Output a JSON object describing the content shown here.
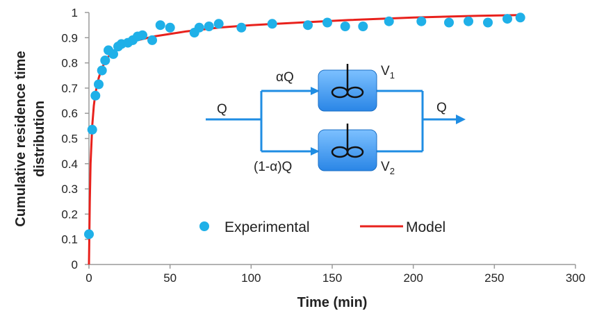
{
  "chart_data": {
    "type": "scatter",
    "xlabel": "Time (min)",
    "ylabel_line1": "Cumulative residence time",
    "ylabel_line2": "distribution",
    "xlim": [
      0,
      300
    ],
    "ylim": [
      0,
      1
    ],
    "x_ticks": [
      0,
      50,
      100,
      150,
      200,
      250,
      300
    ],
    "y_ticks": [
      0,
      0.1,
      0.2,
      0.3,
      0.4,
      0.5,
      0.6,
      0.7,
      0.8,
      0.9,
      1
    ],
    "y_tick_labels": [
      "0",
      "0.1",
      "0.2",
      "0.3",
      "0.4",
      "0.5",
      "0.6",
      "0.7",
      "0.8",
      "0.9",
      "1"
    ],
    "grid": false,
    "legend_position": "bottom-right",
    "series": [
      {
        "name": "Experimental",
        "kind": "scatter",
        "color": "#1fb0e8",
        "points": [
          [
            0,
            0.12
          ],
          [
            2,
            0.535
          ],
          [
            4,
            0.67
          ],
          [
            6,
            0.715
          ],
          [
            8,
            0.77
          ],
          [
            10,
            0.81
          ],
          [
            12,
            0.85
          ],
          [
            15,
            0.835
          ],
          [
            18,
            0.865
          ],
          [
            20,
            0.875
          ],
          [
            24,
            0.88
          ],
          [
            27,
            0.89
          ],
          [
            30,
            0.905
          ],
          [
            33,
            0.91
          ],
          [
            39,
            0.89
          ],
          [
            44,
            0.95
          ],
          [
            50,
            0.94
          ],
          [
            65,
            0.92
          ],
          [
            68,
            0.94
          ],
          [
            74,
            0.945
          ],
          [
            80,
            0.955
          ],
          [
            94,
            0.94
          ],
          [
            113,
            0.955
          ],
          [
            135,
            0.95
          ],
          [
            147,
            0.96
          ],
          [
            158,
            0.945
          ],
          [
            169,
            0.945
          ],
          [
            185,
            0.965
          ],
          [
            205,
            0.965
          ],
          [
            222,
            0.96
          ],
          [
            234,
            0.965
          ],
          [
            246,
            0.96
          ],
          [
            258,
            0.975
          ],
          [
            266,
            0.98
          ]
        ]
      },
      {
        "name": "Model",
        "kind": "line",
        "color": "#e8211c",
        "points": [
          [
            0,
            0
          ],
          [
            0.5,
            0.25
          ],
          [
            1,
            0.4
          ],
          [
            2,
            0.55
          ],
          [
            3,
            0.63
          ],
          [
            4,
            0.68
          ],
          [
            6,
            0.74
          ],
          [
            8,
            0.78
          ],
          [
            10,
            0.805
          ],
          [
            12,
            0.825
          ],
          [
            15,
            0.845
          ],
          [
            20,
            0.865
          ],
          [
            25,
            0.88
          ],
          [
            30,
            0.89
          ],
          [
            40,
            0.905
          ],
          [
            50,
            0.915
          ],
          [
            60,
            0.925
          ],
          [
            80,
            0.94
          ],
          [
            100,
            0.95
          ],
          [
            130,
            0.96
          ],
          [
            160,
            0.97
          ],
          [
            200,
            0.98
          ],
          [
            240,
            0.987
          ],
          [
            268,
            0.99
          ]
        ]
      }
    ],
    "inset_diagram": {
      "inlet_label": "Q",
      "outlet_label": "Q",
      "upper_stream_label": "αQ",
      "lower_stream_label": "(1-α)Q",
      "tank1_label": "V",
      "tank1_subscript": "1",
      "tank2_label": "V",
      "tank2_subscript": "2",
      "pipe_color": "#1f8de3",
      "tank_color": "#3c9ff0"
    }
  }
}
